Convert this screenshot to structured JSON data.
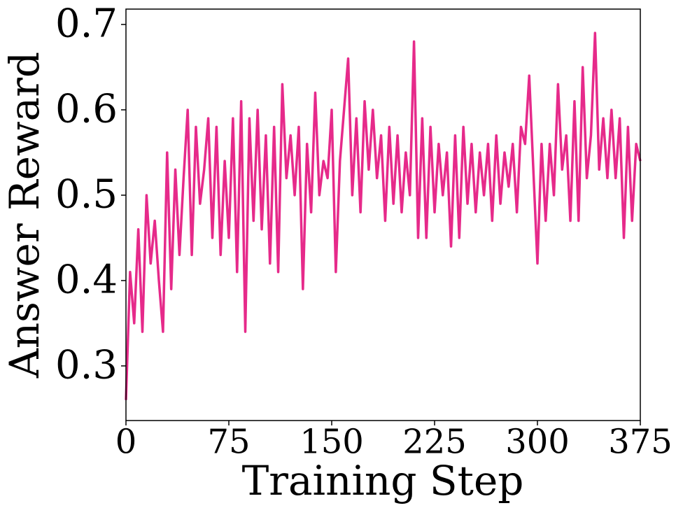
{
  "chart_data": {
    "type": "line",
    "xlabel": "Training Step",
    "ylabel": "Answer Reward",
    "color": "#e62a8a",
    "grid": false,
    "xlim": [
      0,
      375
    ],
    "ylim": [
      0.236,
      0.718
    ],
    "xticks": [
      0,
      75,
      150,
      225,
      300,
      375
    ],
    "yticks": [
      0.3,
      0.4,
      0.5,
      0.6,
      0.7
    ],
    "x": [
      0,
      3,
      6,
      9,
      12,
      15,
      18,
      21,
      24,
      27,
      30,
      33,
      36,
      39,
      42,
      45,
      48,
      51,
      54,
      57,
      60,
      63,
      66,
      69,
      72,
      75,
      78,
      81,
      84,
      87,
      90,
      93,
      96,
      99,
      102,
      105,
      108,
      111,
      114,
      117,
      120,
      123,
      126,
      129,
      132,
      135,
      138,
      141,
      144,
      147,
      150,
      153,
      156,
      159,
      162,
      165,
      168,
      171,
      174,
      177,
      180,
      183,
      186,
      189,
      192,
      195,
      198,
      201,
      204,
      207,
      210,
      213,
      216,
      219,
      222,
      225,
      228,
      231,
      234,
      237,
      240,
      243,
      246,
      249,
      252,
      255,
      258,
      261,
      264,
      267,
      270,
      273,
      276,
      279,
      282,
      285,
      288,
      291,
      294,
      297,
      300,
      303,
      306,
      309,
      312,
      315,
      318,
      321,
      324,
      327,
      330,
      333,
      336,
      339,
      342,
      345,
      348,
      351,
      354,
      357,
      360,
      363,
      366,
      369,
      372,
      375
    ],
    "values": [
      0.26,
      0.41,
      0.35,
      0.46,
      0.34,
      0.5,
      0.42,
      0.47,
      0.4,
      0.34,
      0.55,
      0.39,
      0.53,
      0.43,
      0.52,
      0.6,
      0.43,
      0.58,
      0.49,
      0.53,
      0.59,
      0.45,
      0.58,
      0.43,
      0.54,
      0.45,
      0.59,
      0.41,
      0.61,
      0.34,
      0.59,
      0.47,
      0.6,
      0.46,
      0.57,
      0.42,
      0.58,
      0.41,
      0.63,
      0.52,
      0.57,
      0.5,
      0.58,
      0.39,
      0.56,
      0.48,
      0.62,
      0.5,
      0.54,
      0.52,
      0.6,
      0.41,
      0.54,
      0.6,
      0.66,
      0.5,
      0.59,
      0.48,
      0.61,
      0.53,
      0.6,
      0.52,
      0.57,
      0.47,
      0.58,
      0.49,
      0.57,
      0.48,
      0.55,
      0.5,
      0.68,
      0.45,
      0.59,
      0.45,
      0.58,
      0.48,
      0.56,
      0.5,
      0.55,
      0.44,
      0.57,
      0.45,
      0.58,
      0.49,
      0.56,
      0.48,
      0.55,
      0.5,
      0.56,
      0.47,
      0.57,
      0.49,
      0.55,
      0.51,
      0.56,
      0.48,
      0.58,
      0.56,
      0.64,
      0.53,
      0.42,
      0.56,
      0.47,
      0.56,
      0.5,
      0.63,
      0.53,
      0.57,
      0.47,
      0.61,
      0.47,
      0.65,
      0.52,
      0.57,
      0.69,
      0.53,
      0.59,
      0.52,
      0.6,
      0.52,
      0.59,
      0.45,
      0.58,
      0.47,
      0.56,
      0.54
    ]
  }
}
